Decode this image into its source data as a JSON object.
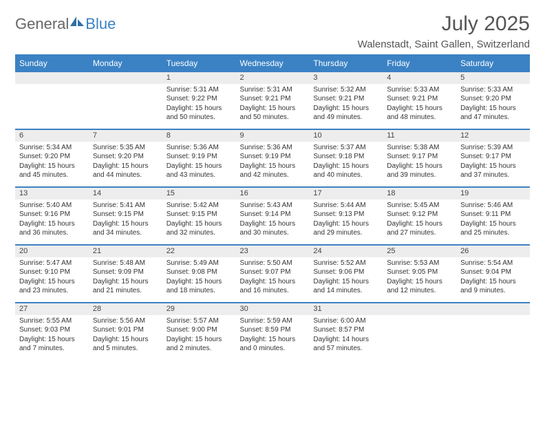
{
  "brand": {
    "general": "General",
    "blue": "Blue"
  },
  "title": "July 2025",
  "location": "Walenstadt, Saint Gallen, Switzerland",
  "colors": {
    "accent": "#3b82c4",
    "header_text": "#ffffff",
    "daynum_bg": "#ededed"
  },
  "day_headers": [
    "Sunday",
    "Monday",
    "Tuesday",
    "Wednesday",
    "Thursday",
    "Friday",
    "Saturday"
  ],
  "weeks": [
    [
      null,
      null,
      {
        "d": "1",
        "sr": "Sunrise: 5:31 AM",
        "ss": "Sunset: 9:22 PM",
        "dl1": "Daylight: 15 hours",
        "dl2": "and 50 minutes."
      },
      {
        "d": "2",
        "sr": "Sunrise: 5:31 AM",
        "ss": "Sunset: 9:21 PM",
        "dl1": "Daylight: 15 hours",
        "dl2": "and 50 minutes."
      },
      {
        "d": "3",
        "sr": "Sunrise: 5:32 AM",
        "ss": "Sunset: 9:21 PM",
        "dl1": "Daylight: 15 hours",
        "dl2": "and 49 minutes."
      },
      {
        "d": "4",
        "sr": "Sunrise: 5:33 AM",
        "ss": "Sunset: 9:21 PM",
        "dl1": "Daylight: 15 hours",
        "dl2": "and 48 minutes."
      },
      {
        "d": "5",
        "sr": "Sunrise: 5:33 AM",
        "ss": "Sunset: 9:20 PM",
        "dl1": "Daylight: 15 hours",
        "dl2": "and 47 minutes."
      }
    ],
    [
      {
        "d": "6",
        "sr": "Sunrise: 5:34 AM",
        "ss": "Sunset: 9:20 PM",
        "dl1": "Daylight: 15 hours",
        "dl2": "and 45 minutes."
      },
      {
        "d": "7",
        "sr": "Sunrise: 5:35 AM",
        "ss": "Sunset: 9:20 PM",
        "dl1": "Daylight: 15 hours",
        "dl2": "and 44 minutes."
      },
      {
        "d": "8",
        "sr": "Sunrise: 5:36 AM",
        "ss": "Sunset: 9:19 PM",
        "dl1": "Daylight: 15 hours",
        "dl2": "and 43 minutes."
      },
      {
        "d": "9",
        "sr": "Sunrise: 5:36 AM",
        "ss": "Sunset: 9:19 PM",
        "dl1": "Daylight: 15 hours",
        "dl2": "and 42 minutes."
      },
      {
        "d": "10",
        "sr": "Sunrise: 5:37 AM",
        "ss": "Sunset: 9:18 PM",
        "dl1": "Daylight: 15 hours",
        "dl2": "and 40 minutes."
      },
      {
        "d": "11",
        "sr": "Sunrise: 5:38 AM",
        "ss": "Sunset: 9:17 PM",
        "dl1": "Daylight: 15 hours",
        "dl2": "and 39 minutes."
      },
      {
        "d": "12",
        "sr": "Sunrise: 5:39 AM",
        "ss": "Sunset: 9:17 PM",
        "dl1": "Daylight: 15 hours",
        "dl2": "and 37 minutes."
      }
    ],
    [
      {
        "d": "13",
        "sr": "Sunrise: 5:40 AM",
        "ss": "Sunset: 9:16 PM",
        "dl1": "Daylight: 15 hours",
        "dl2": "and 36 minutes."
      },
      {
        "d": "14",
        "sr": "Sunrise: 5:41 AM",
        "ss": "Sunset: 9:15 PM",
        "dl1": "Daylight: 15 hours",
        "dl2": "and 34 minutes."
      },
      {
        "d": "15",
        "sr": "Sunrise: 5:42 AM",
        "ss": "Sunset: 9:15 PM",
        "dl1": "Daylight: 15 hours",
        "dl2": "and 32 minutes."
      },
      {
        "d": "16",
        "sr": "Sunrise: 5:43 AM",
        "ss": "Sunset: 9:14 PM",
        "dl1": "Daylight: 15 hours",
        "dl2": "and 30 minutes."
      },
      {
        "d": "17",
        "sr": "Sunrise: 5:44 AM",
        "ss": "Sunset: 9:13 PM",
        "dl1": "Daylight: 15 hours",
        "dl2": "and 29 minutes."
      },
      {
        "d": "18",
        "sr": "Sunrise: 5:45 AM",
        "ss": "Sunset: 9:12 PM",
        "dl1": "Daylight: 15 hours",
        "dl2": "and 27 minutes."
      },
      {
        "d": "19",
        "sr": "Sunrise: 5:46 AM",
        "ss": "Sunset: 9:11 PM",
        "dl1": "Daylight: 15 hours",
        "dl2": "and 25 minutes."
      }
    ],
    [
      {
        "d": "20",
        "sr": "Sunrise: 5:47 AM",
        "ss": "Sunset: 9:10 PM",
        "dl1": "Daylight: 15 hours",
        "dl2": "and 23 minutes."
      },
      {
        "d": "21",
        "sr": "Sunrise: 5:48 AM",
        "ss": "Sunset: 9:09 PM",
        "dl1": "Daylight: 15 hours",
        "dl2": "and 21 minutes."
      },
      {
        "d": "22",
        "sr": "Sunrise: 5:49 AM",
        "ss": "Sunset: 9:08 PM",
        "dl1": "Daylight: 15 hours",
        "dl2": "and 18 minutes."
      },
      {
        "d": "23",
        "sr": "Sunrise: 5:50 AM",
        "ss": "Sunset: 9:07 PM",
        "dl1": "Daylight: 15 hours",
        "dl2": "and 16 minutes."
      },
      {
        "d": "24",
        "sr": "Sunrise: 5:52 AM",
        "ss": "Sunset: 9:06 PM",
        "dl1": "Daylight: 15 hours",
        "dl2": "and 14 minutes."
      },
      {
        "d": "25",
        "sr": "Sunrise: 5:53 AM",
        "ss": "Sunset: 9:05 PM",
        "dl1": "Daylight: 15 hours",
        "dl2": "and 12 minutes."
      },
      {
        "d": "26",
        "sr": "Sunrise: 5:54 AM",
        "ss": "Sunset: 9:04 PM",
        "dl1": "Daylight: 15 hours",
        "dl2": "and 9 minutes."
      }
    ],
    [
      {
        "d": "27",
        "sr": "Sunrise: 5:55 AM",
        "ss": "Sunset: 9:03 PM",
        "dl1": "Daylight: 15 hours",
        "dl2": "and 7 minutes."
      },
      {
        "d": "28",
        "sr": "Sunrise: 5:56 AM",
        "ss": "Sunset: 9:01 PM",
        "dl1": "Daylight: 15 hours",
        "dl2": "and 5 minutes."
      },
      {
        "d": "29",
        "sr": "Sunrise: 5:57 AM",
        "ss": "Sunset: 9:00 PM",
        "dl1": "Daylight: 15 hours",
        "dl2": "and 2 minutes."
      },
      {
        "d": "30",
        "sr": "Sunrise: 5:59 AM",
        "ss": "Sunset: 8:59 PM",
        "dl1": "Daylight: 15 hours",
        "dl2": "and 0 minutes."
      },
      {
        "d": "31",
        "sr": "Sunrise: 6:00 AM",
        "ss": "Sunset: 8:57 PM",
        "dl1": "Daylight: 14 hours",
        "dl2": "and 57 minutes."
      },
      null,
      null
    ]
  ]
}
